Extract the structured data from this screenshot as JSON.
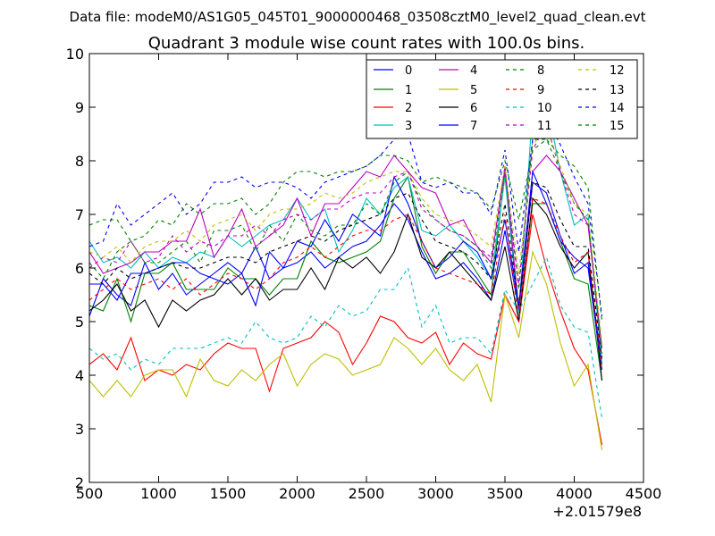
{
  "supertitle": "Data file: modeM0/AS1G05_045T01_9000000468_03508cztM0_level2_quad_clean.evt",
  "chart_data": {
    "type": "line",
    "title": "Quadrant 3 module wise count rates with 100.0s bins.",
    "xlabel": "",
    "ylabel": "",
    "xlim": [
      500,
      4500
    ],
    "ylim": [
      2,
      10
    ],
    "x_offset_label": "+2.01579e8",
    "xticks": [
      500,
      1000,
      1500,
      2000,
      2500,
      3000,
      3500,
      4000,
      4500
    ],
    "xtick_labels": [
      "500",
      "1000",
      "1500",
      "2000",
      "2500",
      "3000",
      "3500",
      "4000",
      "4500"
    ],
    "yticks": [
      2,
      3,
      4,
      5,
      6,
      7,
      8,
      9,
      10
    ],
    "ytick_labels": [
      "2",
      "3",
      "4",
      "5",
      "6",
      "7",
      "8",
      "9",
      "10"
    ],
    "grid": false,
    "legend_position": "top-right",
    "x": [
      500,
      600,
      700,
      800,
      900,
      1000,
      1100,
      1200,
      1300,
      1400,
      1500,
      1600,
      1700,
      1800,
      1900,
      2000,
      2100,
      2200,
      2300,
      2400,
      2500,
      2600,
      2700,
      2800,
      2900,
      3000,
      3100,
      3200,
      3300,
      3400,
      3500,
      3600,
      3700,
      3800,
      3900,
      4000,
      4100,
      4200
    ],
    "series": [
      {
        "name": "0",
        "color": "#0000ff",
        "dash": "solid",
        "values": [
          5.1,
          5.8,
          5.5,
          5.3,
          6.1,
          5.6,
          5.9,
          5.5,
          5.7,
          5.9,
          6.1,
          5.9,
          6.4,
          5.8,
          6.0,
          6.1,
          6.3,
          6.0,
          6.2,
          6.4,
          6.5,
          6.8,
          7.2,
          6.9,
          6.3,
          5.8,
          5.9,
          6.1,
          5.8,
          5.4,
          6.7,
          5.2,
          7.6,
          7.4,
          6.6,
          5.9,
          6.1,
          4.2
        ]
      },
      {
        "name": "1",
        "color": "#008000",
        "dash": "solid",
        "values": [
          5.3,
          5.2,
          5.8,
          5.0,
          5.9,
          5.9,
          6.1,
          5.6,
          5.6,
          5.6,
          6.0,
          5.8,
          5.8,
          5.5,
          5.8,
          5.8,
          6.5,
          6.2,
          6.1,
          6.2,
          6.3,
          6.5,
          7.3,
          7.7,
          6.4,
          5.9,
          6.3,
          6.3,
          5.9,
          5.5,
          7.8,
          5.1,
          7.2,
          7.2,
          6.5,
          5.8,
          5.7,
          3.9
        ]
      },
      {
        "name": "2",
        "color": "#ff0000",
        "dash": "solid",
        "values": [
          4.2,
          4.4,
          4.1,
          4.7,
          3.9,
          4.1,
          4.0,
          4.2,
          4.1,
          4.4,
          4.6,
          4.5,
          4.5,
          3.7,
          4.5,
          4.6,
          4.7,
          5.0,
          4.8,
          4.2,
          4.6,
          5.1,
          5.0,
          4.7,
          4.6,
          4.8,
          4.2,
          4.6,
          4.4,
          4.3,
          5.5,
          5.0,
          7.0,
          6.0,
          5.2,
          4.5,
          4.1,
          2.7
        ]
      },
      {
        "name": "3",
        "color": "#00bfbf",
        "dash": "solid",
        "values": [
          6.5,
          6.1,
          6.2,
          6.0,
          6.3,
          6.0,
          6.2,
          6.1,
          6.3,
          6.2,
          6.6,
          6.4,
          6.6,
          6.8,
          6.9,
          7.3,
          6.9,
          7.1,
          6.3,
          6.7,
          7.3,
          7.0,
          7.5,
          7.7,
          6.7,
          6.6,
          6.8,
          6.5,
          6.2,
          5.8,
          7.7,
          5.1,
          9.0,
          9.1,
          7.8,
          6.8,
          7.0,
          4.2
        ]
      },
      {
        "name": "4",
        "color": "#bf00bf",
        "dash": "solid",
        "values": [
          6.3,
          5.9,
          6.0,
          6.1,
          6.3,
          6.3,
          6.5,
          6.5,
          7.1,
          6.2,
          6.6,
          7.1,
          6.4,
          6.6,
          6.8,
          7.3,
          6.6,
          7.2,
          7.2,
          7.5,
          7.8,
          7.7,
          8.1,
          7.8,
          7.5,
          7.4,
          6.8,
          6.9,
          6.4,
          6.1,
          7.9,
          5.2,
          7.8,
          8.1,
          7.8,
          7.3,
          6.8,
          4.5
        ]
      },
      {
        "name": "5",
        "color": "#bfbf00",
        "dash": "solid",
        "values": [
          3.9,
          3.6,
          3.9,
          3.6,
          4.0,
          4.1,
          4.1,
          3.6,
          4.3,
          3.9,
          3.8,
          4.1,
          3.9,
          4.2,
          4.4,
          3.8,
          4.2,
          4.4,
          4.3,
          4.0,
          4.1,
          4.2,
          4.7,
          4.5,
          4.2,
          4.5,
          4.1,
          3.9,
          4.2,
          3.5,
          5.5,
          4.7,
          6.3,
          5.7,
          4.6,
          3.8,
          4.2,
          2.6
        ]
      },
      {
        "name": "6",
        "color": "#000000",
        "dash": "solid",
        "values": [
          5.2,
          5.4,
          5.7,
          5.2,
          5.4,
          4.9,
          5.4,
          5.2,
          5.4,
          5.5,
          5.8,
          5.5,
          5.8,
          5.4,
          5.6,
          5.6,
          6.0,
          5.6,
          6.2,
          6.0,
          6.2,
          5.9,
          6.3,
          7.0,
          6.2,
          6.0,
          6.3,
          6.0,
          5.7,
          5.4,
          6.4,
          5.0,
          7.3,
          7.0,
          6.4,
          6.0,
          6.3,
          3.9
        ]
      },
      {
        "name": "7",
        "color": "#0000ff",
        "dash": "solid",
        "values": [
          5.7,
          5.7,
          5.4,
          5.9,
          5.9,
          6.0,
          6.1,
          6.1,
          5.9,
          5.8,
          5.7,
          5.9,
          5.3,
          6.3,
          6.0,
          6.5,
          6.4,
          6.9,
          6.5,
          7.0,
          6.8,
          6.6,
          7.7,
          7.2,
          6.5,
          6.0,
          6.2,
          6.5,
          6.3,
          5.8,
          6.9,
          5.3,
          7.8,
          7.2,
          6.5,
          6.2,
          6.0,
          4.1
        ]
      },
      {
        "name": "8",
        "color": "#008000",
        "dash": "4,4",
        "values": [
          6.1,
          5.8,
          6.3,
          6.5,
          6.1,
          6.1,
          6.3,
          6.5,
          6.1,
          6.7,
          6.7,
          6.8,
          6.3,
          6.8,
          6.5,
          7.0,
          6.7,
          6.6,
          6.8,
          6.8,
          7.2,
          7.0,
          7.6,
          7.8,
          7.2,
          6.9,
          6.7,
          6.6,
          6.4,
          6.0,
          7.8,
          5.6,
          8.4,
          8.4,
          7.8,
          7.2,
          6.9,
          4.4
        ]
      },
      {
        "name": "9",
        "color": "#ff0000",
        "dash": "4,4",
        "values": [
          5.4,
          5.6,
          5.8,
          5.6,
          5.7,
          5.8,
          5.6,
          5.8,
          5.5,
          5.7,
          5.9,
          5.8,
          5.6,
          5.8,
          6.1,
          6.2,
          6.4,
          6.2,
          6.4,
          6.6,
          6.7,
          6.7,
          6.9,
          7.0,
          6.5,
          6.0,
          5.9,
          5.8,
          5.7,
          5.5,
          7.0,
          5.0,
          7.3,
          7.2,
          6.6,
          6.1,
          6.3,
          4.1
        ]
      },
      {
        "name": "10",
        "color": "#00bfbf",
        "dash": "4,4",
        "values": [
          4.5,
          4.3,
          4.4,
          4.1,
          4.3,
          4.2,
          4.5,
          4.5,
          4.5,
          4.6,
          4.7,
          4.6,
          5.0,
          4.7,
          4.6,
          4.7,
          5.1,
          4.9,
          5.3,
          5.1,
          5.2,
          5.6,
          5.6,
          6.0,
          4.9,
          5.3,
          4.6,
          4.7,
          4.7,
          4.4,
          5.6,
          5.2,
          5.7,
          6.2,
          5.3,
          4.9,
          4.8,
          3.2
        ]
      },
      {
        "name": "11",
        "color": "#bf00bf",
        "dash": "4,4",
        "values": [
          6.0,
          6.2,
          6.1,
          6.5,
          6.1,
          6.2,
          6.6,
          6.3,
          6.5,
          6.4,
          6.6,
          6.6,
          6.8,
          6.6,
          6.9,
          7.0,
          6.9,
          7.1,
          7.1,
          7.3,
          7.4,
          7.4,
          7.7,
          7.8,
          7.1,
          6.9,
          6.7,
          6.6,
          6.4,
          6.2,
          7.8,
          5.7,
          8.2,
          8.7,
          7.8,
          7.0,
          6.8,
          4.5
        ]
      },
      {
        "name": "12",
        "color": "#bfbf00",
        "dash": "4,4",
        "values": [
          6.3,
          6.2,
          6.4,
          6.1,
          6.4,
          6.5,
          6.5,
          6.7,
          6.5,
          6.8,
          6.9,
          7.0,
          6.7,
          7.0,
          7.1,
          7.1,
          7.2,
          7.4,
          7.3,
          7.4,
          7.6,
          7.7,
          7.8,
          7.8,
          7.3,
          7.0,
          6.9,
          6.8,
          6.6,
          6.4,
          7.9,
          5.9,
          8.3,
          8.6,
          7.9,
          7.2,
          7.0,
          4.6
        ]
      },
      {
        "name": "13",
        "color": "#000000",
        "dash": "4,4",
        "values": [
          5.9,
          5.7,
          6.0,
          5.8,
          5.9,
          6.0,
          6.1,
          6.0,
          6.0,
          6.1,
          6.2,
          6.2,
          6.1,
          6.3,
          6.4,
          6.5,
          6.6,
          6.5,
          6.7,
          6.8,
          6.9,
          7.0,
          7.3,
          7.4,
          6.9,
          6.5,
          6.4,
          6.3,
          6.1,
          5.8,
          7.2,
          5.3,
          7.6,
          7.5,
          6.9,
          6.4,
          6.4,
          4.3
        ]
      },
      {
        "name": "14",
        "color": "#0000ff",
        "dash": "4,4",
        "values": [
          6.4,
          6.5,
          7.2,
          6.8,
          7.0,
          7.2,
          7.4,
          7.0,
          7.2,
          7.6,
          7.6,
          7.7,
          7.5,
          7.6,
          7.6,
          7.5,
          7.3,
          7.6,
          7.7,
          7.8,
          7.9,
          8.1,
          8.4,
          8.5,
          7.6,
          7.5,
          7.6,
          7.4,
          7.4,
          7.0,
          8.2,
          6.3,
          8.4,
          8.8,
          8.3,
          7.7,
          7.2,
          5.1
        ]
      },
      {
        "name": "15",
        "color": "#008000",
        "dash": "4,4",
        "values": [
          6.8,
          6.9,
          6.9,
          6.5,
          6.6,
          6.9,
          6.8,
          7.2,
          7.0,
          7.2,
          7.2,
          7.3,
          7.0,
          7.2,
          7.6,
          7.8,
          7.8,
          7.7,
          7.8,
          7.8,
          7.9,
          8.1,
          8.1,
          8.0,
          7.6,
          7.7,
          7.6,
          7.5,
          7.4,
          7.1,
          8.0,
          6.9,
          8.2,
          8.4,
          8.1,
          7.9,
          7.5,
          5.0
        ]
      }
    ]
  }
}
